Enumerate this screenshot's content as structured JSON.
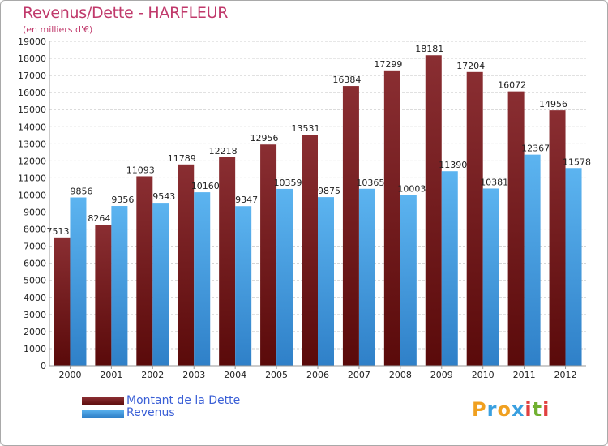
{
  "header": {
    "title": "Revenus/Dette - HARFLEUR",
    "subtitle": "(en milliers d'€)"
  },
  "legend": {
    "dette_label": "Montant de la Dette",
    "revenus_label": "Revenus"
  },
  "logo": {
    "letters": [
      "P",
      "r",
      "o",
      "x",
      "i",
      "t",
      "i"
    ],
    "colors": [
      "#f0a020",
      "#3aa0e0",
      "#f0a020",
      "#3aa0e0",
      "#e04040",
      "#70b030",
      "#e04040"
    ]
  },
  "colors": {
    "dette": "#6e1a1a",
    "revenus": "#4aa5e8",
    "title": "#c0396b",
    "legend_text": "#3a5fd6"
  },
  "chart_data": {
    "type": "bar",
    "categories": [
      "2000",
      "2001",
      "2002",
      "2003",
      "2004",
      "2005",
      "2006",
      "2007",
      "2008",
      "2009",
      "2010",
      "2011",
      "2012"
    ],
    "series": [
      {
        "name": "Montant de la Dette",
        "values": [
          7513,
          8264,
          11093,
          11789,
          12218,
          12956,
          13531,
          16384,
          17299,
          18181,
          17204,
          16072,
          14956
        ]
      },
      {
        "name": "Revenus",
        "values": [
          9856,
          9356,
          9543,
          10160,
          9347,
          10359,
          9875,
          10365,
          10003,
          11390,
          10381,
          12367,
          11578
        ]
      }
    ],
    "series_labels": [
      [
        "7513",
        "8264",
        "11093",
        "11789",
        "12218",
        "12956",
        "13531",
        "16384",
        "17299",
        "18181",
        "17204",
        "16072",
        "14956"
      ],
      [
        "9856",
        "9356",
        "9543",
        "10160",
        "9347",
        "10359",
        "9875",
        "10365",
        "10003",
        "11390",
        "10381",
        "12367",
        "11578"
      ]
    ],
    "ylim": [
      0,
      19000
    ],
    "yticks": [
      "0",
      "1000",
      "2000",
      "3000",
      "4000",
      "5000",
      "6000",
      "7000",
      "8000",
      "9000",
      "10000",
      "11000",
      "12000",
      "13000",
      "14000",
      "15000",
      "16000",
      "17000",
      "18000",
      "19000"
    ],
    "title": "Revenus/Dette - HARFLEUR",
    "subtitle": "(en milliers d'€)",
    "grid": true,
    "legend_position": "bottom-left"
  }
}
